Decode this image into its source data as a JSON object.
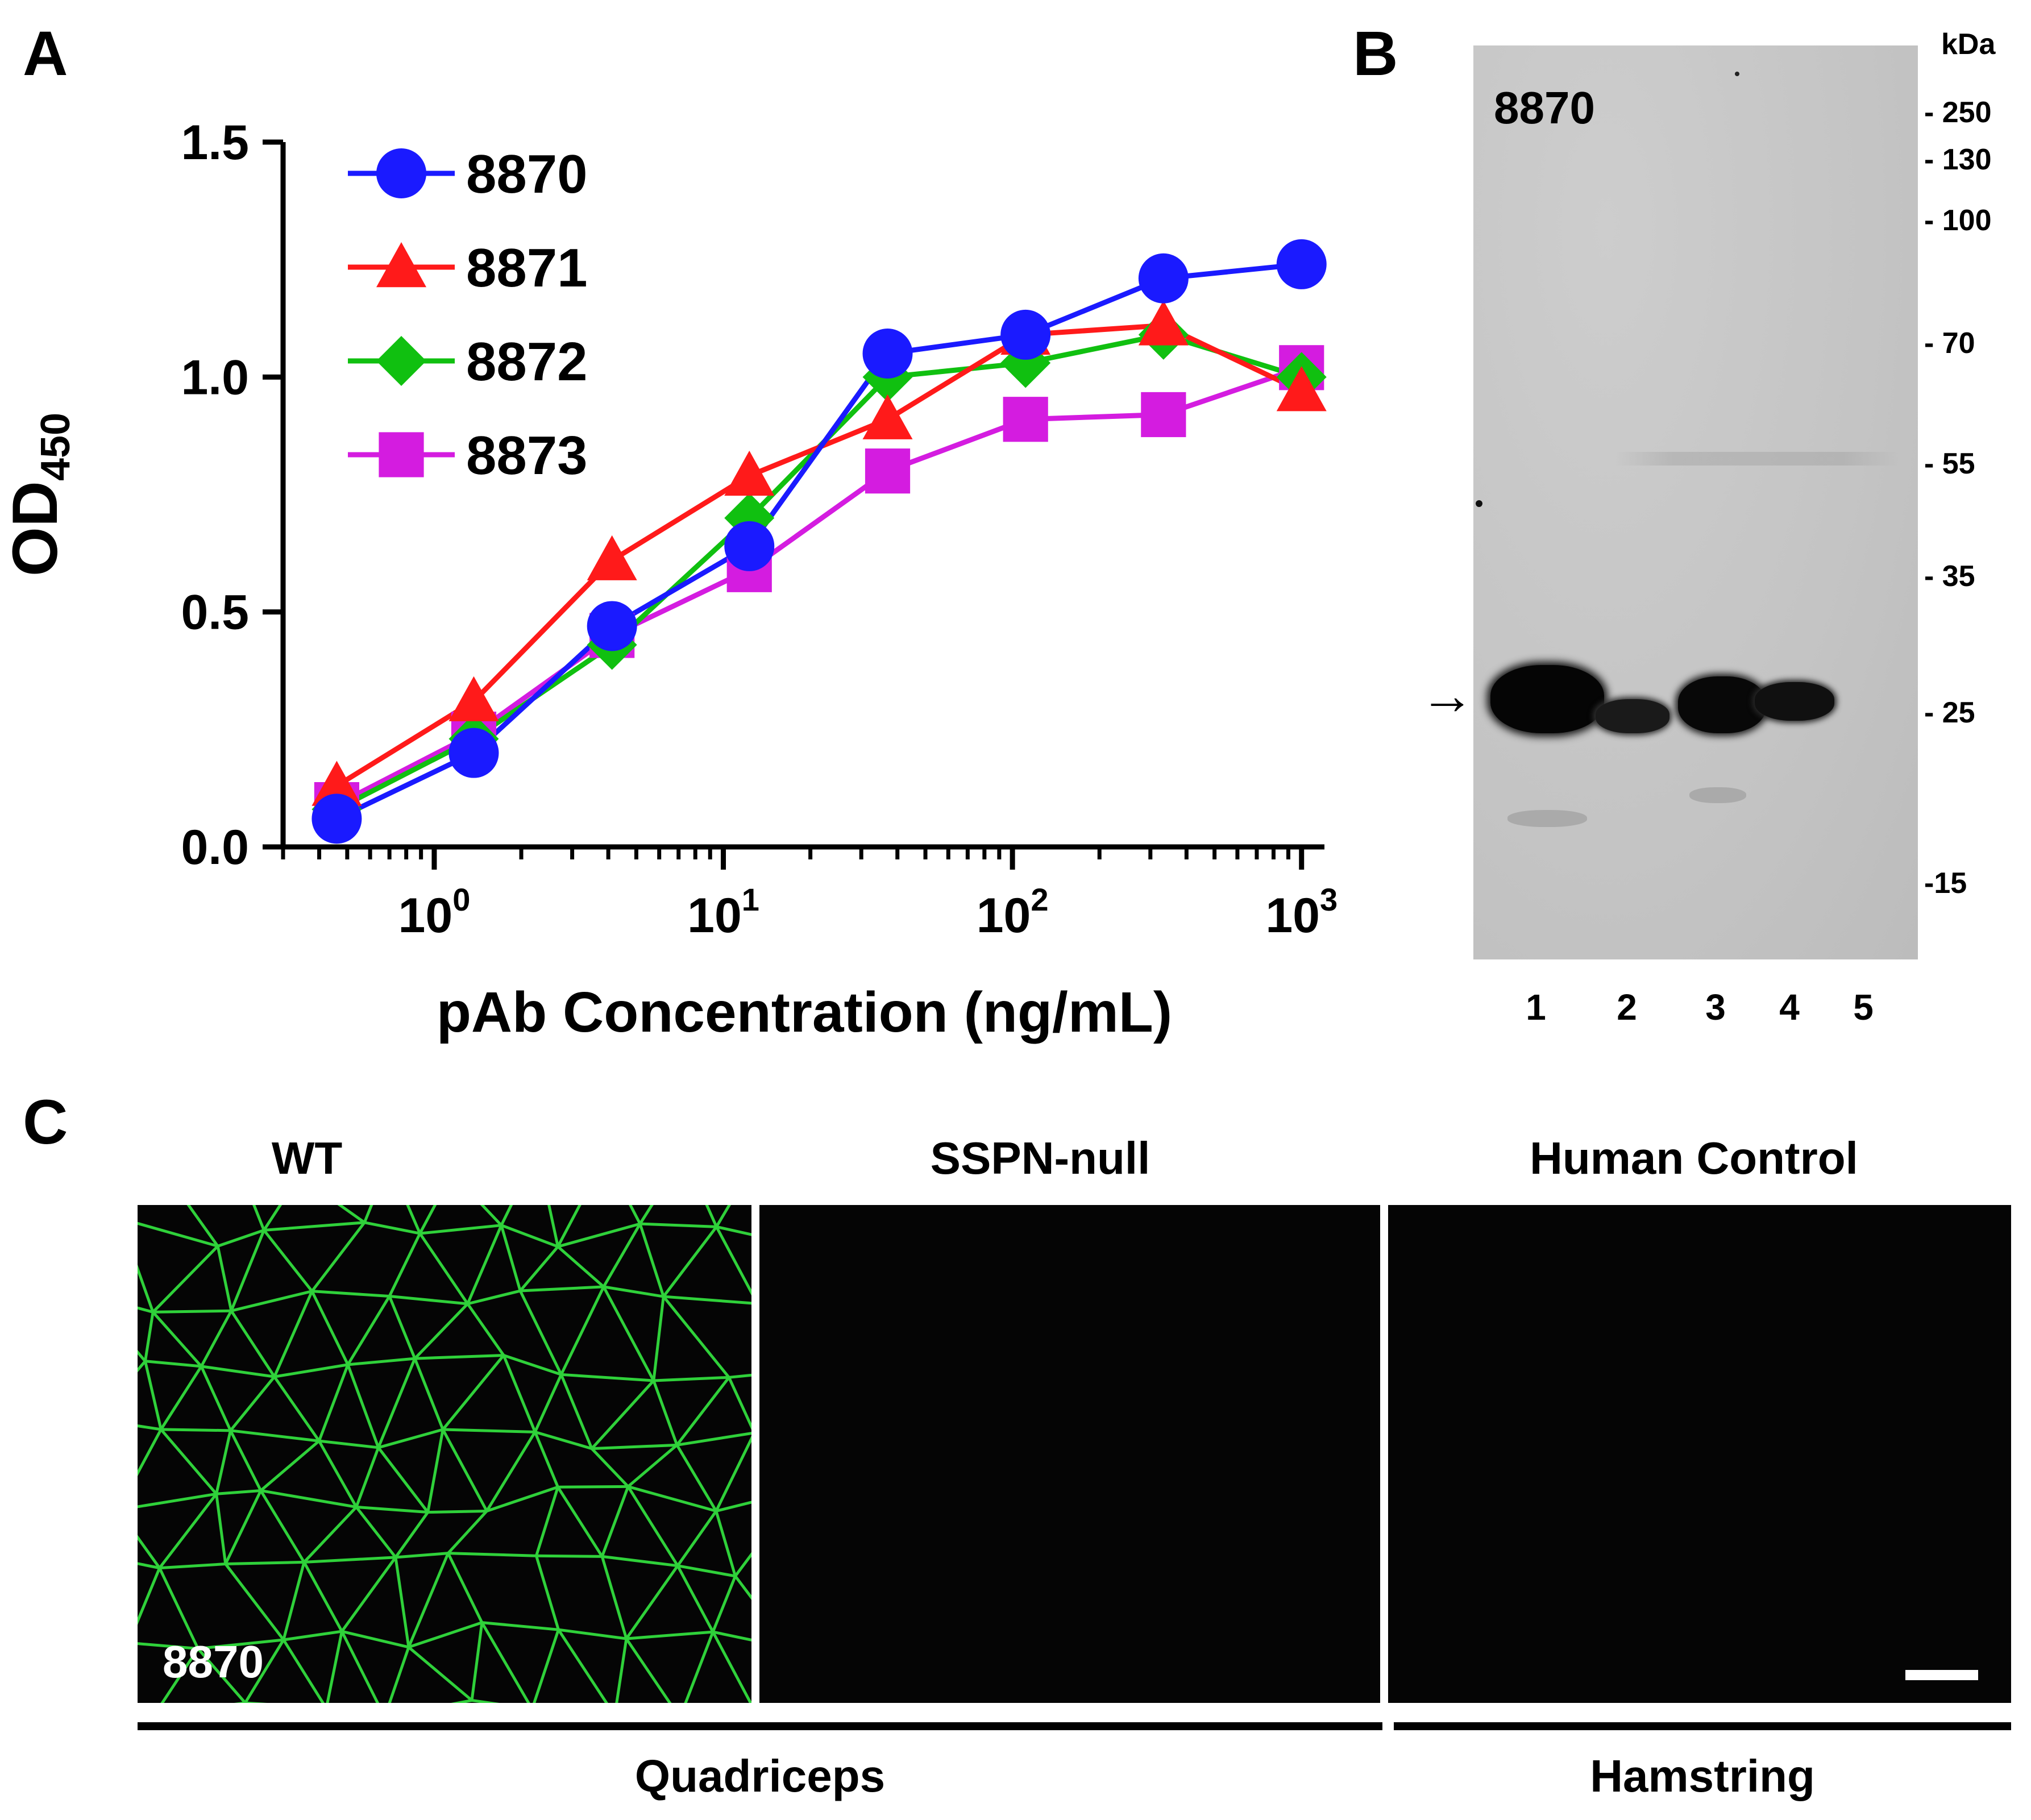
{
  "panels": {
    "A": "A",
    "B": "B",
    "C": "C"
  },
  "chart_data": {
    "type": "line",
    "x_scale": "log",
    "xlabel": "pAb Concentration (ng/mL)",
    "ylabel": "OD",
    "ylabel_sub": "450",
    "ylim": [
      0,
      1.5
    ],
    "xlim": [
      0.3,
      1200
    ],
    "yticks": [
      "0.0",
      "0.5",
      "1.0",
      "1.5"
    ],
    "xticks": [
      {
        "base": "10",
        "exp": "0",
        "value": 1
      },
      {
        "base": "10",
        "exp": "1",
        "value": 10
      },
      {
        "base": "10",
        "exp": "2",
        "value": 100
      },
      {
        "base": "10",
        "exp": "3",
        "value": 1000
      }
    ],
    "x": [
      0.46,
      1.37,
      4.12,
      12.3,
      37.0,
      111,
      333,
      1000
    ],
    "legend_position": "top-left",
    "series": [
      {
        "name": "8870",
        "color": "#1a1aff",
        "marker": "circle",
        "values": [
          0.06,
          0.2,
          0.47,
          0.64,
          1.05,
          1.09,
          1.21,
          1.24
        ]
      },
      {
        "name": "8871",
        "color": "#ff1a1a",
        "marker": "triangle",
        "values": [
          0.13,
          0.31,
          0.61,
          0.79,
          0.91,
          1.09,
          1.11,
          0.97
        ]
      },
      {
        "name": "8872",
        "color": "#10c010",
        "marker": "diamond",
        "values": [
          0.08,
          0.23,
          0.43,
          0.7,
          1.0,
          1.03,
          1.09,
          1.0
        ]
      },
      {
        "name": "8873",
        "color": "#d41ce0",
        "marker": "square",
        "values": [
          0.09,
          0.24,
          0.45,
          0.59,
          0.8,
          0.91,
          0.92,
          1.02
        ]
      }
    ]
  },
  "blot": {
    "antibody": "8870",
    "unit": "kDa",
    "ladder": [
      "- 250",
      "- 130",
      "- 100",
      "- 70",
      "- 55",
      "- 35",
      "- 25",
      "-15"
    ],
    "lanes": [
      "1",
      "2",
      "3",
      "4",
      "5"
    ],
    "arrow": "→"
  },
  "if": {
    "columns": [
      "WT",
      "SSPN-null",
      "Human Control"
    ],
    "antibody": "8870",
    "muscles": [
      "Quadriceps",
      "Hamstring"
    ],
    "stain_color": "#2fd13a"
  }
}
